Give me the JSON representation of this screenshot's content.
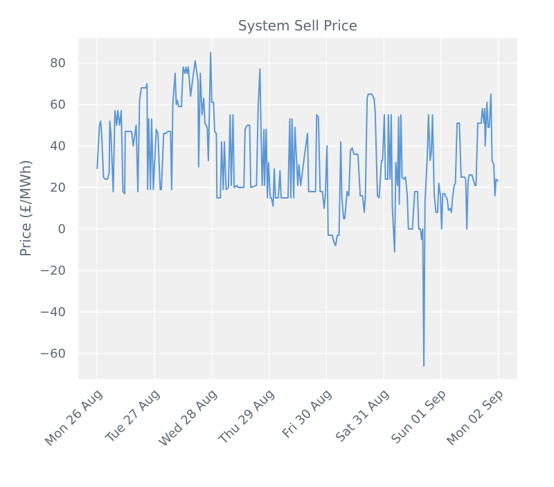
{
  "chart_data": {
    "type": "line",
    "title": "System Sell Price",
    "y_label": "Price (£/MWh)",
    "color": "#5b97d6",
    "grid": true,
    "x": [
      0,
      0.04,
      0.06,
      0.08,
      0.11,
      0.14,
      0.18,
      0.21,
      0.22,
      0.24,
      0.28,
      0.31,
      0.34,
      0.36,
      0.39,
      0.42,
      0.45,
      0.48,
      0.49,
      0.6,
      0.63,
      0.68,
      0.71,
      0.74,
      0.77,
      0.85,
      0.87,
      0.88,
      0.9,
      0.93,
      0.95,
      0.98,
      1.03,
      1.06,
      1.1,
      1.12,
      1.16,
      1.2,
      1.23,
      1.28,
      1.3,
      1.32,
      1.36,
      1.38,
      1.4,
      1.42,
      1.47,
      1.5,
      1.53,
      1.55,
      1.57,
      1.59,
      1.63,
      1.67,
      1.71,
      1.76,
      1.77,
      1.8,
      1.83,
      1.86,
      1.88,
      1.92,
      1.94,
      1.98,
      2.0,
      2.03,
      2.05,
      2.08,
      2.09,
      2.15,
      2.17,
      2.2,
      2.22,
      2.25,
      2.29,
      2.32,
      2.34,
      2.37,
      2.39,
      2.44,
      2.46,
      2.56,
      2.58,
      2.62,
      2.66,
      2.68,
      2.78,
      2.81,
      2.84,
      2.86,
      2.88,
      2.91,
      2.92,
      2.95,
      2.97,
      2.99,
      3.02,
      3.04,
      3.07,
      3.09,
      3.11,
      3.16,
      3.19,
      3.21,
      3.33,
      3.36,
      3.38,
      3.4,
      3.43,
      3.45,
      3.5,
      3.52,
      3.55,
      3.62,
      3.67,
      3.69,
      3.81,
      3.83,
      3.86,
      3.89,
      3.93,
      3.96,
      3.98,
      4.01,
      4.03,
      4.1,
      4.14,
      4.16,
      4.19,
      4.22,
      4.25,
      4.27,
      4.3,
      4.32,
      4.36,
      4.39,
      4.42,
      4.45,
      4.48,
      4.55,
      4.59,
      4.63,
      4.66,
      4.68,
      4.71,
      4.73,
      4.79,
      4.83,
      4.85,
      4.89,
      4.92,
      4.96,
      4.98,
      5.01,
      5.03,
      5.07,
      5.08,
      5.11,
      5.13,
      5.15,
      5.19,
      5.21,
      5.24,
      5.26,
      5.27,
      5.3,
      5.32,
      5.35,
      5.38,
      5.41,
      5.43,
      5.5,
      5.54,
      5.59,
      5.61,
      5.64,
      5.66,
      5.68,
      5.7,
      5.72,
      5.76,
      5.78,
      5.81,
      5.83,
      5.85,
      5.88,
      5.91,
      5.94,
      5.96,
      5.99,
      6.01,
      6.03,
      6.06,
      6.11,
      6.13,
      6.16,
      6.18,
      6.2,
      6.23,
      6.25,
      6.28,
      6.32,
      6.35,
      6.41,
      6.43,
      6.45,
      6.47,
      6.49,
      6.54,
      6.59,
      6.61,
      6.64,
      6.7,
      6.72,
      6.75,
      6.76,
      6.77,
      6.8,
      6.82,
      6.84,
      6.87,
      6.89,
      6.92,
      6.94,
      6.96,
      7.0
    ],
    "values": [
      29,
      50,
      52,
      45,
      25,
      24,
      24,
      27,
      52,
      46,
      18,
      57,
      50,
      57,
      50,
      57,
      18,
      17,
      47,
      47,
      40,
      50,
      18,
      62,
      68,
      68,
      70,
      19,
      53,
      19,
      53,
      19,
      48,
      46,
      19,
      19,
      46,
      46,
      47,
      47,
      19,
      60,
      75,
      60,
      62,
      59,
      59,
      78,
      75,
      78,
      75,
      78,
      64,
      73,
      81,
      71,
      30,
      75,
      55,
      63,
      51,
      49,
      33,
      85,
      61,
      61,
      47,
      46,
      15,
      15,
      42,
      19,
      42,
      19,
      20,
      55,
      21,
      55,
      20,
      21,
      20,
      20,
      48,
      50,
      50,
      20,
      21,
      60,
      77,
      45,
      21,
      48,
      21,
      48,
      15,
      32,
      15,
      15,
      11,
      29,
      15,
      15,
      28,
      15,
      15,
      53,
      15,
      53,
      15,
      49,
      21,
      31,
      21,
      36,
      46,
      18,
      18,
      55,
      54,
      18,
      18,
      10,
      16,
      40,
      -3,
      -3,
      -7,
      -8,
      -3,
      -3,
      42,
      15,
      5,
      5,
      18,
      16,
      38,
      39,
      36,
      36,
      16,
      16,
      8,
      16,
      63,
      65,
      65,
      63,
      57,
      16,
      15,
      33,
      33,
      55,
      24,
      24,
      55,
      24,
      55,
      10,
      -11,
      32,
      21,
      54,
      12,
      55,
      25,
      24,
      25,
      16,
      0,
      0,
      18,
      18,
      0,
      0,
      -5,
      0,
      -66,
      13,
      35,
      55,
      33,
      37,
      55,
      17,
      8,
      8,
      22,
      16,
      0,
      17,
      17,
      14,
      9,
      10,
      8,
      15,
      21,
      22,
      51,
      51,
      25,
      25,
      24,
      0,
      22,
      26,
      26,
      21,
      21,
      51,
      51,
      58,
      51,
      58,
      40,
      61,
      49,
      49,
      65,
      33,
      31,
      16,
      24,
      23
    ],
    "xlim": [
      -0.33,
      7.33
    ],
    "xticks": [
      {
        "value": 0,
        "label": "Mon 26 Aug"
      },
      {
        "value": 1,
        "label": "Tue 27 Aug"
      },
      {
        "value": 2,
        "label": "Wed 28 Aug"
      },
      {
        "value": 3,
        "label": "Thu 29 Aug"
      },
      {
        "value": 4,
        "label": "Fri 30 Aug"
      },
      {
        "value": 5,
        "label": "Sat 31 Aug"
      },
      {
        "value": 6,
        "label": "Sun 01 Sep"
      },
      {
        "value": 7,
        "label": "Mon 02 Sep"
      }
    ],
    "ylim": [
      -72.3,
      92
    ],
    "yticks": [
      {
        "value": -60,
        "label": "−60"
      },
      {
        "value": -40,
        "label": "−40"
      },
      {
        "value": -20,
        "label": "−20"
      },
      0,
      20,
      40,
      60,
      80
    ]
  }
}
